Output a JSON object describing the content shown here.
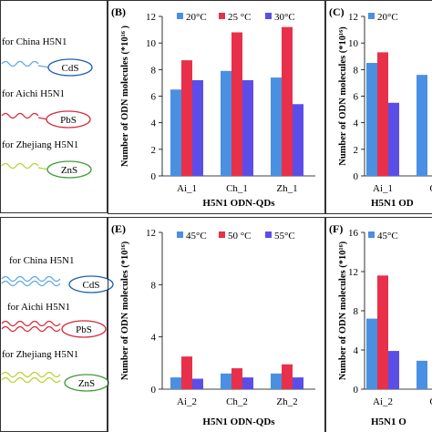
{
  "left_panel": {
    "top_labels": [
      "for China H5N1",
      "for Aichi H5N1",
      "for Zhejiang H5N1"
    ],
    "top_qd_labels": [
      "CdS",
      "PbS",
      "ZnS"
    ],
    "bottom_labels": [
      "for China H5N1",
      "for Aichi H5N1",
      "for Zhejiang H5N1"
    ],
    "bottom_qd_labels": [
      "CdS",
      "PbS",
      "ZnS"
    ],
    "colors": {
      "cds": "#1f5fb5",
      "pbs": "#d62b3c",
      "zns": "#3f9c35",
      "wave_blue": "#5fa9e0",
      "wave_red": "#d62b3c",
      "wave_green": "#b9d232"
    }
  },
  "chart_data": [
    {
      "panel_letter": "(B)",
      "type": "bar",
      "categories": [
        "Ai_1",
        "Ch_1",
        "Zh_1"
      ],
      "series": [
        {
          "name": "20°C",
          "values": [
            6.5,
            7.9,
            7.4
          ],
          "color": "#4a90e2"
        },
        {
          "name": "25 °C",
          "values": [
            8.7,
            10.8,
            11.2
          ],
          "color": "#e8304a"
        },
        {
          "name": "30°C",
          "values": [
            7.2,
            7.2,
            5.4
          ],
          "color": "#5b4ee8"
        }
      ],
      "ylim": [
        0,
        12
      ],
      "yticks": [
        "0",
        "2",
        "4",
        "6",
        "8",
        "10",
        "12"
      ],
      "ylabel": "Number of ODN molecules (*10¹⁶ )",
      "xlabel": "H5N1 ODN-QDs",
      "legend": "top"
    },
    {
      "panel_letter": "(C)",
      "type": "bar",
      "categories": [
        "Ai_1",
        "C"
      ],
      "series": [
        {
          "name": "20°C",
          "values": [
            8.5,
            7.6
          ],
          "color": "#4a90e2"
        },
        {
          "name": "",
          "values": [
            9.3,
            null
          ],
          "color": "#e8304a"
        },
        {
          "name": "",
          "values": [
            5.5,
            null
          ],
          "color": "#5b4ee8"
        }
      ],
      "ylim": [
        0,
        12
      ],
      "yticks": [
        "0",
        "2",
        "4",
        "6",
        "8",
        "10",
        "12"
      ],
      "ylabel": "Number of ODN molecules (*10¹⁶)",
      "xlabel": "H5N1 OD",
      "legend": "top"
    },
    {
      "panel_letter": "(E)",
      "type": "bar",
      "categories": [
        "Ai_2",
        "Ch_2",
        "Zh_2"
      ],
      "series": [
        {
          "name": "45°C",
          "values": [
            0.9,
            1.2,
            1.2
          ],
          "color": "#4a90e2"
        },
        {
          "name": "50 °C",
          "values": [
            2.5,
            1.6,
            1.9
          ],
          "color": "#e8304a"
        },
        {
          "name": "55°C",
          "values": [
            0.8,
            0.9,
            0.9
          ],
          "color": "#5b4ee8"
        }
      ],
      "ylim": [
        0,
        12
      ],
      "yticks": [
        "0",
        "4",
        "8",
        "12"
      ],
      "ylabel": "Number of ODN molecules (*10¹⁶)",
      "xlabel": "H5N1 ODN-QDs",
      "legend": "top"
    },
    {
      "panel_letter": "(F)",
      "type": "bar",
      "categories": [
        "Ai_2",
        "C"
      ],
      "series": [
        {
          "name": "45°C",
          "values": [
            7.2,
            2.9
          ],
          "color": "#4a90e2"
        },
        {
          "name": "",
          "values": [
            11.6,
            null
          ],
          "color": "#e8304a"
        },
        {
          "name": "",
          "values": [
            3.9,
            null
          ],
          "color": "#5b4ee8"
        }
      ],
      "ylim": [
        0,
        16
      ],
      "yticks": [
        "0",
        "4",
        "8",
        "12",
        "16"
      ],
      "ylabel": "Number of ODN molecules (*10¹⁶)",
      "xlabel": "H5N1 O",
      "legend": "top"
    }
  ]
}
